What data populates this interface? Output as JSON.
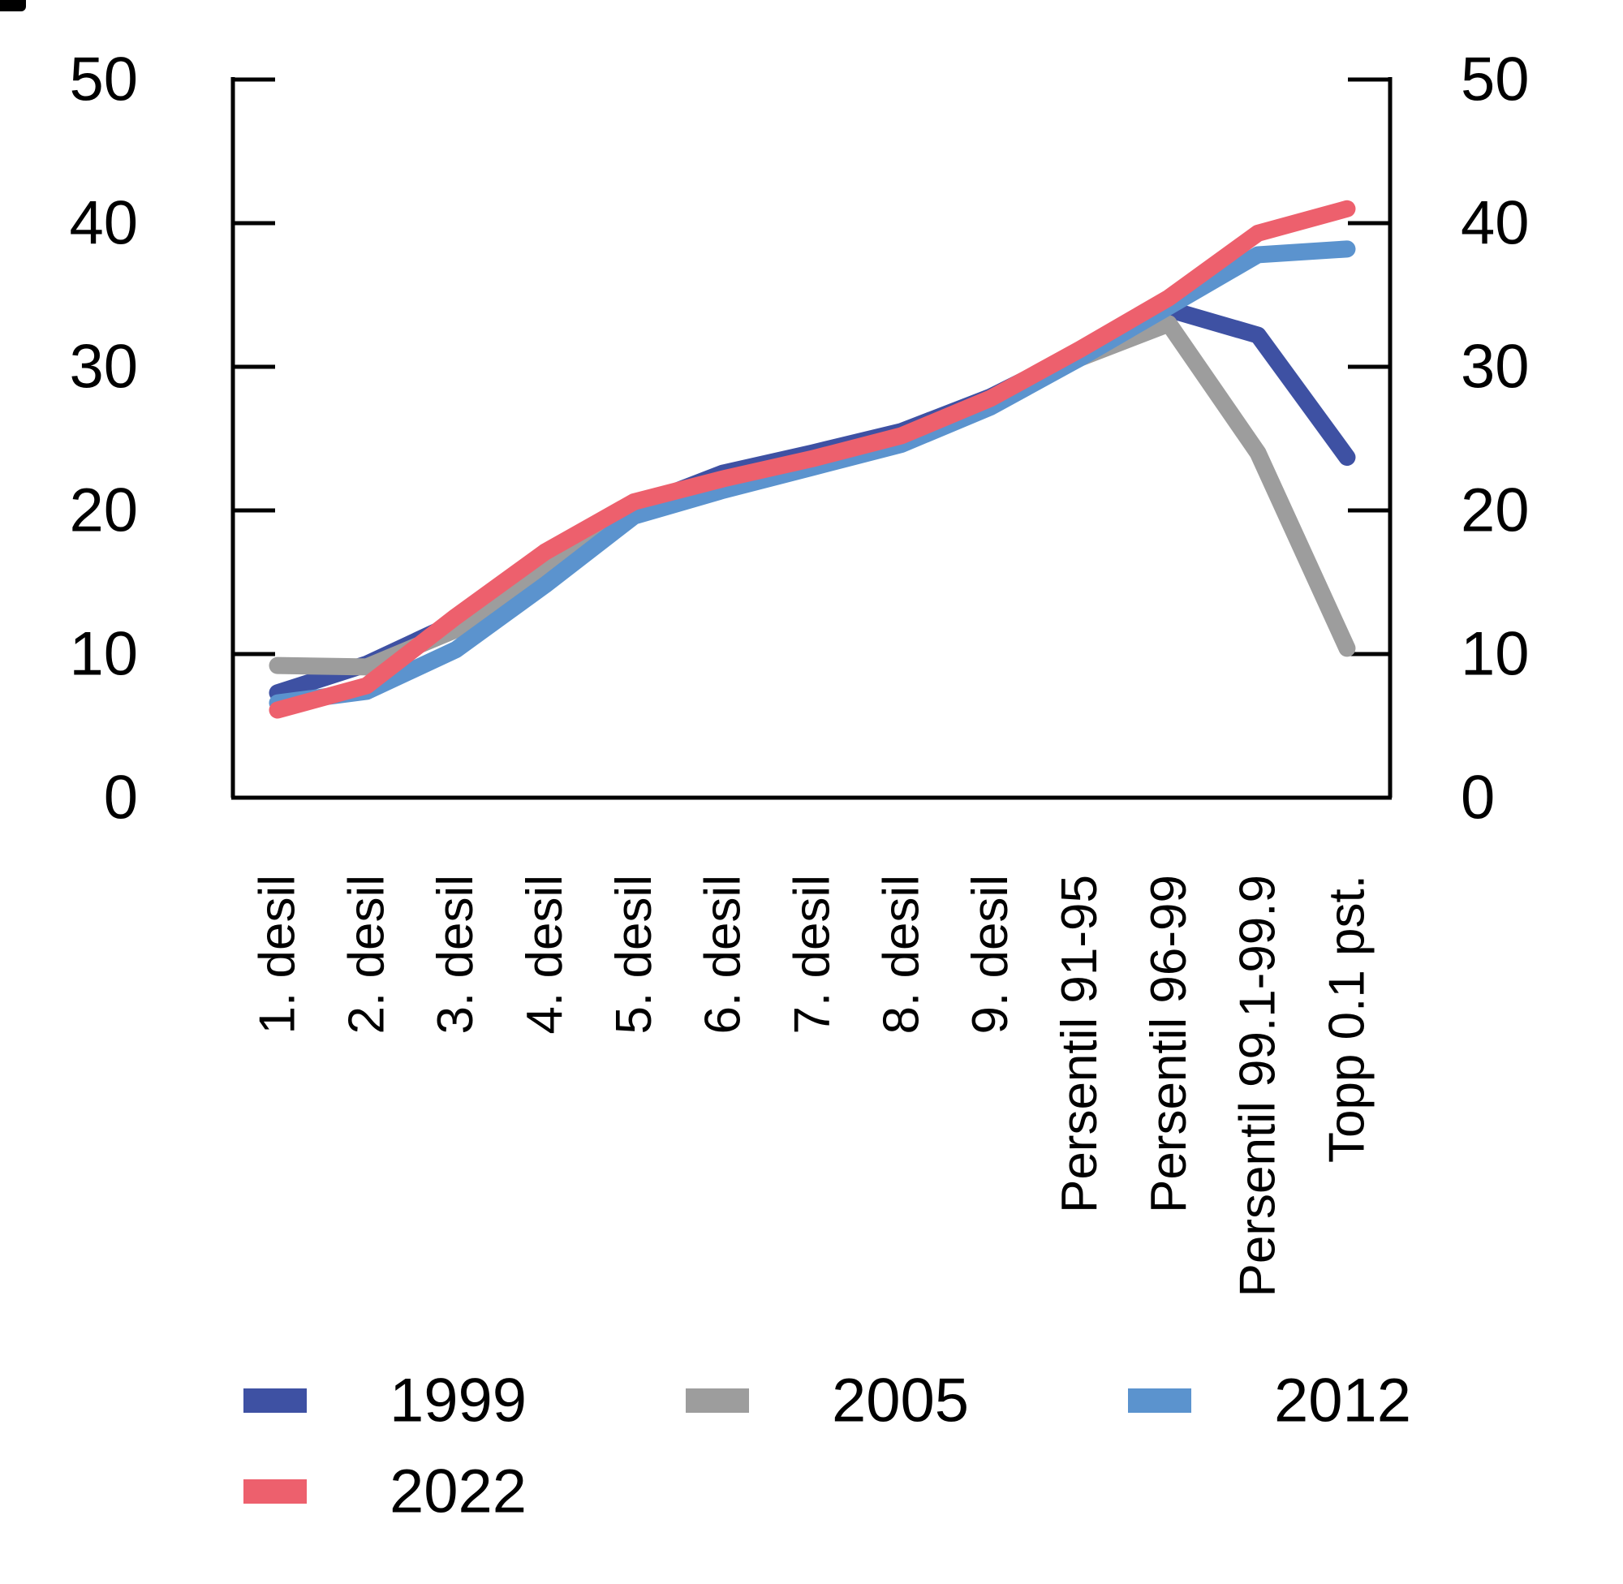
{
  "page": {
    "background_color": "#ffffff",
    "text_color": "#000000"
  },
  "chart_data": {
    "type": "line",
    "title": "",
    "xlabel": "",
    "ylabel": "",
    "categories": [
      "1. desil",
      "2. desil",
      "3. desil",
      "4. desil",
      "5. desil",
      "6. desil",
      "7. desil",
      "8. desil",
      "9. desil",
      "Persentil 91-95",
      "Persentil 96-99",
      "Persentil 99.1-99.9",
      "Topp 0.1 pst."
    ],
    "series": [
      {
        "name": "1999",
        "color": "#3E51A3",
        "values": [
          7.3,
          9.3,
          12.2,
          16.4,
          20.2,
          22.6,
          24.0,
          25.5,
          27.9,
          31.0,
          34.0,
          32.2,
          23.7
        ]
      },
      {
        "name": "2005",
        "color": "#9D9D9D",
        "values": [
          9.2,
          9.1,
          11.7,
          15.8,
          20.0,
          21.9,
          23.4,
          24.9,
          27.4,
          30.6,
          33.0,
          24.0,
          10.4
        ]
      },
      {
        "name": "2012",
        "color": "#5B93CE",
        "values": [
          6.6,
          7.4,
          10.3,
          14.8,
          19.6,
          21.4,
          23.0,
          24.6,
          27.2,
          30.6,
          34.2,
          37.8,
          38.2
        ]
      },
      {
        "name": "2022",
        "color": "#ED606D",
        "values": [
          6.1,
          7.8,
          12.6,
          17.1,
          20.6,
          22.2,
          23.6,
          25.2,
          27.8,
          31.2,
          34.8,
          39.3,
          41.0
        ]
      }
    ],
    "y_axis": {
      "min": 0,
      "max": 50,
      "tick_labels": [
        "0",
        "10",
        "20",
        "30",
        "40",
        "50"
      ],
      "tick_values": [
        0,
        10,
        20,
        30,
        40,
        50
      ],
      "sides": [
        "left",
        "right"
      ]
    },
    "grid": false,
    "legend_position": "bottom",
    "legend_rows": [
      [
        "1999",
        "2005",
        "2012"
      ],
      [
        "2022"
      ]
    ]
  }
}
